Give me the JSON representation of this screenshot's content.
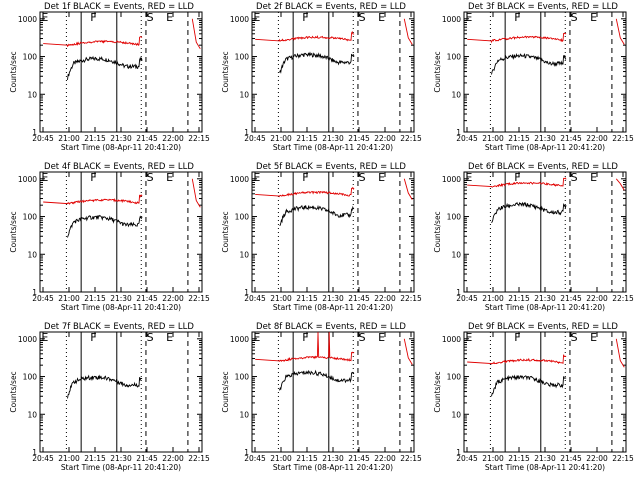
{
  "figure": {
    "background": "#ffffff"
  },
  "chart_data": [
    {
      "panel_title": "Det 1f BLACK = Events, RED = LLD",
      "xlabel": "Start Time (08-Apr-11 20:41:20)",
      "ylabel": "Counts/sec",
      "x_ticks": [
        "20:45",
        "21:00",
        "21:15",
        "21:30",
        "21:45",
        "22:00",
        "22:15"
      ],
      "y_ticks": [
        "1",
        "10",
        "100",
        "1000"
      ],
      "markers": [
        "E",
        "F",
        "S",
        "E"
      ]
    },
    {
      "panel_title": "Det 2f BLACK = Events, RED = LLD",
      "xlabel": "Start Time (08-Apr-11 20:41:20)",
      "ylabel": "Counts/sec",
      "x_ticks": [
        "20:45",
        "21:00",
        "21:15",
        "21:30",
        "21:45",
        "22:00",
        "22:15"
      ],
      "y_ticks": [
        "1",
        "10",
        "100",
        "1000"
      ],
      "markers": [
        "E",
        "F",
        "S",
        "E"
      ]
    },
    {
      "panel_title": "Det 3f BLACK = Events, RED = LLD",
      "xlabel": "Start Time (08-Apr-11 20:41:20)",
      "ylabel": "Counts/sec",
      "x_ticks": [
        "20:45",
        "21:00",
        "21:15",
        "21:30",
        "21:45",
        "22:00",
        "22:15"
      ],
      "y_ticks": [
        "1",
        "10",
        "100",
        "1000"
      ],
      "markers": [
        "E",
        "F",
        "S",
        "E"
      ]
    },
    {
      "panel_title": "Det 4f BLACK = Events, RED = LLD",
      "xlabel": "Start Time (08-Apr-11 20:41:20)",
      "ylabel": "Counts/sec",
      "x_ticks": [
        "20:45",
        "21:00",
        "21:15",
        "21:30",
        "21:45",
        "22:00",
        "22:15"
      ],
      "y_ticks": [
        "1",
        "10",
        "100",
        "1000"
      ],
      "markers": [
        "E",
        "F",
        "S",
        "E"
      ]
    },
    {
      "panel_title": "Det 5f BLACK = Events, RED = LLD",
      "xlabel": "Start Time (08-Apr-11 20:41:20)",
      "ylabel": "Counts/sec",
      "x_ticks": [
        "20:45",
        "21:00",
        "21:15",
        "21:30",
        "21:45",
        "22:00",
        "22:15"
      ],
      "y_ticks": [
        "1",
        "10",
        "100",
        "1000"
      ],
      "markers": [
        "E",
        "F",
        "S",
        "E"
      ]
    },
    {
      "panel_title": "Det 6f BLACK = Events, RED = LLD",
      "xlabel": "Start Time (08-Apr-11 20:41:20)",
      "ylabel": "Counts/sec",
      "x_ticks": [
        "20:45",
        "21:00",
        "21:15",
        "21:30",
        "21:45",
        "22:00",
        "22:15"
      ],
      "y_ticks": [
        "1",
        "10",
        "100",
        "1000"
      ],
      "markers": [
        "E",
        "F",
        "S",
        "E"
      ]
    },
    {
      "panel_title": "Det 7f BLACK = Events, RED = LLD",
      "xlabel": "Start Time (08-Apr-11 20:41:20)",
      "ylabel": "Counts/sec",
      "x_ticks": [
        "20:45",
        "21:00",
        "21:15",
        "21:30",
        "21:45",
        "22:00",
        "22:15"
      ],
      "y_ticks": [
        "1",
        "10",
        "100",
        "1000"
      ],
      "markers": [
        "E",
        "F",
        "S",
        "E"
      ]
    },
    {
      "panel_title": "Det 8f BLACK = Events, RED = LLD",
      "xlabel": "Start Time (08-Apr-11 20:41:20)",
      "ylabel": "Counts/sec",
      "x_ticks": [
        "20:45",
        "21:00",
        "21:15",
        "21:30",
        "21:45",
        "22:00",
        "22:15"
      ],
      "y_ticks": [
        "1",
        "10",
        "100",
        "1000"
      ],
      "markers": [
        "E",
        "F",
        "S",
        "E"
      ]
    },
    {
      "panel_title": "Det 9f BLACK = Events, RED = LLD",
      "xlabel": "Start Time (08-Apr-11 20:41:20)",
      "ylabel": "Counts/sec",
      "x_ticks": [
        "20:45",
        "21:00",
        "21:15",
        "21:30",
        "21:45",
        "22:00",
        "22:15"
      ],
      "y_ticks": [
        "1",
        "10",
        "100",
        "1000"
      ],
      "markers": [
        "E",
        "F",
        "S",
        "E"
      ]
    }
  ]
}
